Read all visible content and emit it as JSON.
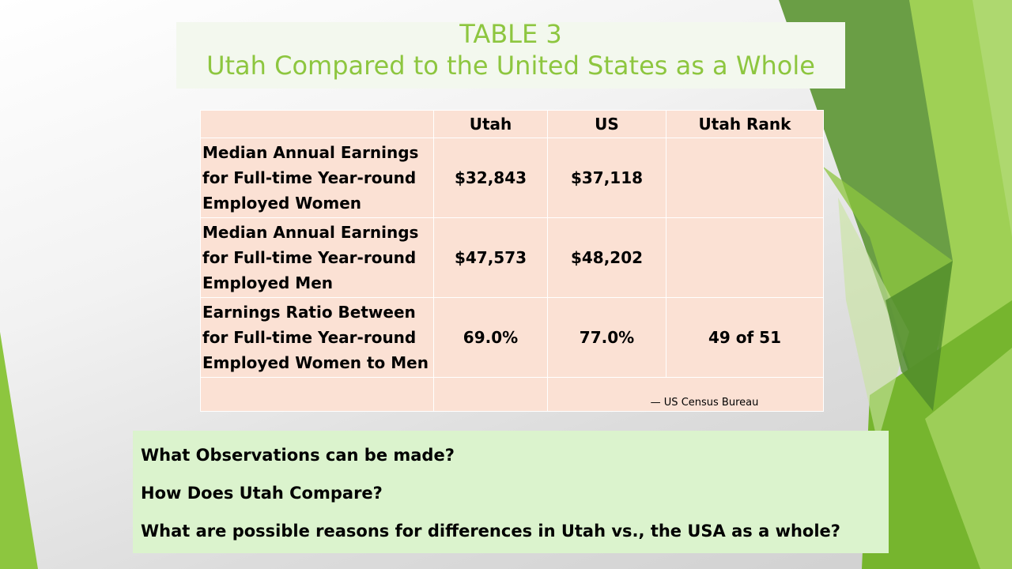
{
  "slide": {
    "title_line1": "TABLE 3",
    "title_line2": "Utah Compared to the United States as a Whole"
  },
  "table": {
    "headers": [
      "",
      "Utah",
      "US",
      "Utah Rank"
    ],
    "rows": [
      {
        "label": "Median Annual Earnings for Full-time Year-round Employed Women",
        "utah": "$32,843",
        "us": "$37,118",
        "rank": ""
      },
      {
        "label": "Median Annual Earnings for Full-time Year-round Employed Men",
        "utah": "$47,573",
        "us": "$48,202",
        "rank": ""
      },
      {
        "label": "Earnings Ratio Between for Full-time Year-round Employed Women to Men",
        "utah": "69.0%",
        "us": "77.0%",
        "rank": "49 of 51"
      }
    ],
    "source": "— US Census Bureau"
  },
  "questions": [
    "What Observations can be made?",
    "How Does Utah Compare?",
    "What are possible reasons for differences in Utah vs., the USA as a whole?"
  ],
  "colors": {
    "title_text": "#8dc63f",
    "table_fill": "#fbe1d4",
    "questions_fill": "#dbf3cd",
    "accent_green": "#8dc63f",
    "dark_green": "#5e9a3a"
  }
}
